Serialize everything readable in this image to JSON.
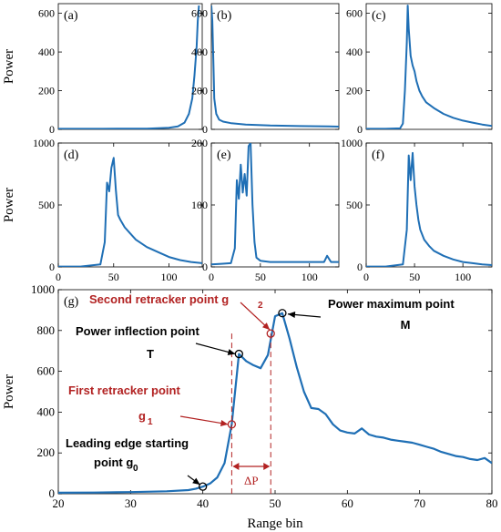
{
  "chart_data": [
    {
      "panel": "(a)",
      "type": "line",
      "ylabel": "Power",
      "xlim": [
        0,
        130
      ],
      "ylim": [
        0,
        650
      ],
      "yticks": [
        0,
        200,
        400,
        600
      ],
      "xticks": [],
      "x": [
        0,
        20,
        40,
        60,
        80,
        100,
        108,
        114,
        118,
        121,
        123,
        125,
        126,
        127
      ],
      "values": [
        3,
        3,
        3,
        4,
        4,
        8,
        15,
        35,
        80,
        160,
        280,
        430,
        560,
        640
      ]
    },
    {
      "panel": "(b)",
      "type": "line",
      "ylabel": "",
      "xlim": [
        0,
        130
      ],
      "ylim": [
        0,
        650
      ],
      "yticks": [
        0,
        200,
        400,
        600
      ],
      "xticks": [],
      "x": [
        0,
        1,
        2,
        3,
        5,
        8,
        12,
        20,
        35,
        60,
        90,
        120,
        130
      ],
      "values": [
        640,
        560,
        360,
        160,
        80,
        50,
        40,
        32,
        25,
        20,
        17,
        15,
        14
      ]
    },
    {
      "panel": "(c)",
      "type": "line",
      "ylabel": "",
      "xlim": [
        0,
        130
      ],
      "ylim": [
        0,
        650
      ],
      "yticks": [
        0,
        200,
        400,
        600
      ],
      "xticks": [],
      "x": [
        0,
        20,
        35,
        38,
        40,
        42,
        43,
        44,
        46,
        48,
        50,
        52,
        55,
        58,
        62,
        70,
        80,
        90,
        100,
        110,
        120,
        130
      ],
      "values": [
        3,
        3,
        5,
        30,
        200,
        450,
        640,
        520,
        380,
        330,
        300,
        250,
        200,
        170,
        140,
        110,
        80,
        60,
        45,
        35,
        25,
        18
      ]
    },
    {
      "panel": "(d)",
      "type": "line",
      "ylabel": "Power",
      "xlim": [
        0,
        130
      ],
      "ylim": [
        0,
        1000
      ],
      "yticks": [
        0,
        500,
        1000
      ],
      "xticks": [
        0,
        50,
        100
      ],
      "x": [
        0,
        20,
        38,
        42,
        44,
        46,
        48,
        50,
        52,
        54,
        56,
        60,
        65,
        70,
        80,
        90,
        100,
        110,
        120,
        130
      ],
      "values": [
        3,
        3,
        20,
        200,
        680,
        610,
        800,
        880,
        620,
        420,
        380,
        320,
        270,
        220,
        160,
        120,
        80,
        55,
        40,
        30
      ]
    },
    {
      "panel": "(e)",
      "type": "line",
      "ylabel": "",
      "xlim": [
        0,
        130
      ],
      "ylim": [
        0,
        200
      ],
      "yticks": [
        0,
        100,
        200
      ],
      "xticks": [
        0,
        50,
        100
      ],
      "x": [
        0,
        10,
        20,
        24,
        26,
        28,
        30,
        32,
        34,
        36,
        38,
        40,
        42,
        44,
        46,
        50,
        60,
        80,
        100,
        115,
        118,
        122,
        126,
        130
      ],
      "values": [
        4,
        5,
        6,
        30,
        140,
        110,
        165,
        120,
        150,
        115,
        195,
        200,
        100,
        40,
        15,
        10,
        8,
        8,
        8,
        8,
        18,
        8,
        8,
        8
      ]
    },
    {
      "panel": "(f)",
      "type": "line",
      "ylabel": "",
      "xlim": [
        0,
        130
      ],
      "ylim": [
        0,
        1000
      ],
      "yticks": [
        0,
        500,
        1000
      ],
      "xticks": [
        0,
        50,
        100
      ],
      "x": [
        0,
        20,
        38,
        42,
        44,
        46,
        48,
        50,
        52,
        54,
        56,
        60,
        65,
        70,
        80,
        90,
        100,
        110,
        120,
        130
      ],
      "values": [
        3,
        3,
        20,
        300,
        900,
        700,
        920,
        650,
        500,
        380,
        300,
        220,
        170,
        130,
        90,
        60,
        40,
        30,
        20,
        15
      ]
    },
    {
      "panel": "(g)",
      "type": "line",
      "xlabel": "Range bin",
      "ylabel": "Power",
      "xlim": [
        20,
        80
      ],
      "ylim": [
        0,
        1000
      ],
      "xticks": [
        20,
        30,
        40,
        50,
        60,
        70,
        80
      ],
      "yticks": [
        0,
        200,
        400,
        600,
        800,
        1000
      ],
      "x": [
        20,
        25,
        30,
        35,
        38,
        39,
        40,
        41,
        42,
        43,
        44,
        45,
        46,
        47,
        48,
        49,
        50,
        51,
        52,
        53,
        54,
        55,
        56,
        57,
        58,
        59,
        60,
        61,
        62,
        63,
        64,
        65,
        66,
        67,
        68,
        69,
        70,
        71,
        72,
        73,
        74,
        75,
        76,
        77,
        78,
        79,
        80
      ],
      "values": [
        5,
        6,
        8,
        12,
        18,
        24,
        35,
        50,
        80,
        150,
        340,
        685,
        650,
        630,
        615,
        680,
        870,
        885,
        760,
        620,
        500,
        420,
        415,
        390,
        340,
        310,
        300,
        295,
        320,
        290,
        280,
        275,
        265,
        260,
        255,
        250,
        240,
        230,
        220,
        205,
        195,
        185,
        180,
        170,
        165,
        175,
        150
      ],
      "markers": {
        "black": [
          {
            "x": 40,
            "y": 35
          },
          {
            "x": 45,
            "y": 685
          },
          {
            "x": 51,
            "y": 885
          }
        ],
        "red": [
          {
            "x": 44,
            "y": 340
          },
          {
            "x": 49.4,
            "y": 785
          }
        ]
      },
      "vlines": [
        44,
        49.4
      ],
      "delta_label": "ΔP",
      "annotations": [
        {
          "id": "leading",
          "lines": [
            "Leading edge starting",
            "point g",
            "0"
          ],
          "color": "black"
        },
        {
          "id": "first",
          "lines": [
            "First retracker point",
            "g",
            "1"
          ],
          "color": "#b22222"
        },
        {
          "id": "inflection",
          "lines": [
            "Power inflection point",
            "T"
          ],
          "color": "black"
        },
        {
          "id": "second",
          "lines": [
            "Second retracker point g",
            "2"
          ],
          "color": "#b22222"
        },
        {
          "id": "maximum",
          "lines": [
            "Power maximum point",
            "M"
          ],
          "color": "black"
        }
      ]
    }
  ],
  "colors": {
    "line": "#1f6fb5",
    "axis": "#000000",
    "red": "#b22222"
  }
}
